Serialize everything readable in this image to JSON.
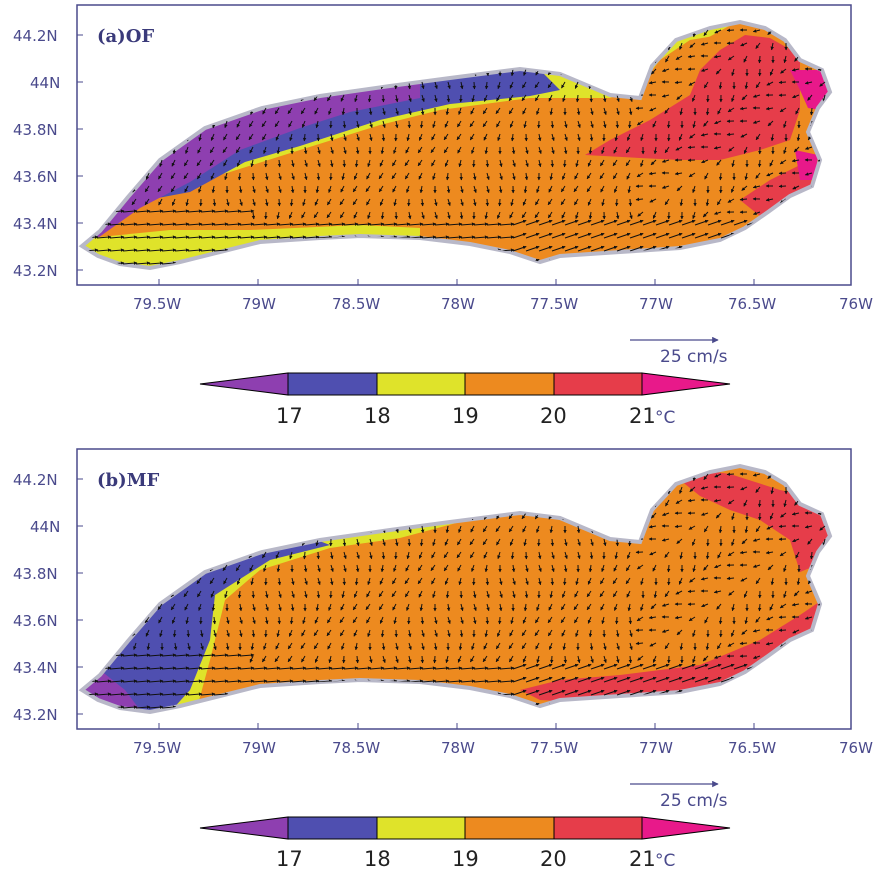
{
  "colors": {
    "17_below": "#8e3fb0",
    "17_18": "#4f4fb0",
    "18_19": "#dfe32a",
    "19_20": "#ed8a1f",
    "20_21": "#e63d4a",
    "21_above": "#e8198a",
    "frame": "#4a4a8c",
    "shore": "#b8b8c8",
    "arrow": "#111111"
  },
  "axes": {
    "lon_ticks": [
      "79.5W",
      "79W",
      "78.5W",
      "78W",
      "77.5W",
      "77W",
      "76.5W",
      "76W"
    ],
    "lat_ticks": [
      "44.2N",
      "44N",
      "43.8N",
      "43.6N",
      "43.4N",
      "43.2N"
    ]
  },
  "colorbar": {
    "labels": [
      "17",
      "18",
      "19",
      "20",
      "21"
    ],
    "unit": "°C"
  },
  "reference_vector": {
    "label": "25 cm/s"
  },
  "panels": [
    {
      "title": "(a)OF"
    },
    {
      "title": "(b)MF"
    }
  ]
}
